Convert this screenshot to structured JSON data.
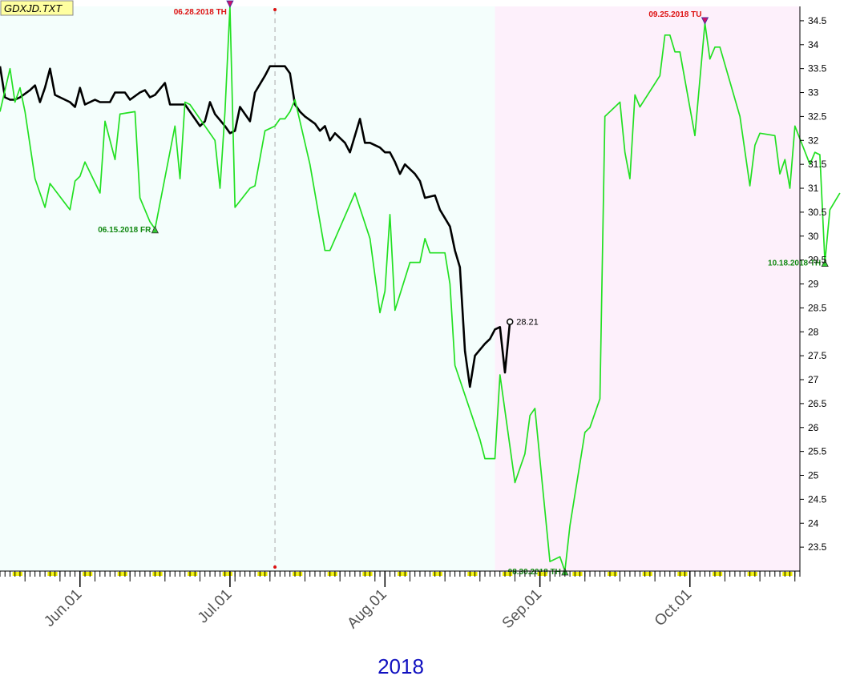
{
  "chart_data": {
    "type": "line",
    "title": "GDXJD.TXT",
    "year_label": "2018",
    "ylim": [
      23.0,
      34.8
    ],
    "y_ticks": [
      "23.5",
      "24",
      "24.5",
      "25",
      "25.5",
      "26",
      "26.5",
      "27",
      "27.5",
      "28",
      "28.5",
      "29",
      "29.5",
      "30",
      "30.5",
      "31",
      "31.5",
      "32",
      "32.5",
      "33",
      "33.5",
      "34",
      "34.5"
    ],
    "x_range": [
      "2018-05-16",
      "2018-10-23"
    ],
    "x_tick_labels": [
      {
        "date": "2018-06-01",
        "label": "Jun.01"
      },
      {
        "date": "2018-07-01",
        "label": "Jul.01"
      },
      {
        "date": "2018-08-01",
        "label": "Aug.01"
      },
      {
        "date": "2018-09-01",
        "label": "Sep.01"
      },
      {
        "date": "2018-10-01",
        "label": "Oct.01"
      }
    ],
    "regions": [
      {
        "from": "2018-05-16",
        "to": "2018-08-23",
        "color": "#f4fefc"
      },
      {
        "from": "2018-08-23",
        "to": "2018-10-23",
        "color": "#fdf0fb"
      }
    ],
    "vline": {
      "date": "2018-07-10",
      "color": "#aaaaaa"
    },
    "series": [
      {
        "color": "#000000",
        "points": [
          [
            "2018-05-16",
            33.55
          ],
          [
            "2018-05-17",
            32.9
          ],
          [
            "2018-05-18",
            32.85
          ],
          [
            "2018-05-19",
            32.85
          ],
          [
            "2018-05-20",
            32.9
          ],
          [
            "2018-05-22",
            33.05
          ],
          [
            "2018-05-23",
            33.15
          ],
          [
            "2018-05-24",
            32.8
          ],
          [
            "2018-05-25",
            33.1
          ],
          [
            "2018-05-26",
            33.5
          ],
          [
            "2018-05-27",
            32.95
          ],
          [
            "2018-05-30",
            32.8
          ],
          [
            "2018-05-31",
            32.7
          ],
          [
            "2018-06-01",
            33.1
          ],
          [
            "2018-06-02",
            32.75
          ],
          [
            "2018-06-04",
            32.85
          ],
          [
            "2018-06-05",
            32.8
          ],
          [
            "2018-06-06",
            32.8
          ],
          [
            "2018-06-07",
            32.8
          ],
          [
            "2018-06-08",
            33.0
          ],
          [
            "2018-06-10",
            33.0
          ],
          [
            "2018-06-11",
            32.85
          ],
          [
            "2018-06-13",
            33.0
          ],
          [
            "2018-06-14",
            33.05
          ],
          [
            "2018-06-15",
            32.9
          ],
          [
            "2018-06-16",
            32.95
          ],
          [
            "2018-06-18",
            33.2
          ],
          [
            "2018-06-19",
            32.75
          ],
          [
            "2018-06-21",
            32.75
          ],
          [
            "2018-06-22",
            32.75
          ],
          [
            "2018-06-25",
            32.3
          ],
          [
            "2018-06-26",
            32.4
          ],
          [
            "2018-06-27",
            32.8
          ],
          [
            "2018-06-28",
            32.55
          ],
          [
            "2018-06-30",
            32.3
          ],
          [
            "2018-07-01",
            32.15
          ],
          [
            "2018-07-02",
            32.2
          ],
          [
            "2018-07-03",
            32.7
          ],
          [
            "2018-07-05",
            32.4
          ],
          [
            "2018-07-06",
            33.0
          ],
          [
            "2018-07-08",
            33.35
          ],
          [
            "2018-07-09",
            33.55
          ],
          [
            "2018-07-11",
            33.55
          ],
          [
            "2018-07-12",
            33.55
          ],
          [
            "2018-07-13",
            33.4
          ],
          [
            "2018-07-14",
            32.75
          ],
          [
            "2018-07-15",
            32.6
          ],
          [
            "2018-07-16",
            32.5
          ],
          [
            "2018-07-18",
            32.35
          ],
          [
            "2018-07-19",
            32.2
          ],
          [
            "2018-07-20",
            32.3
          ],
          [
            "2018-07-21",
            32.0
          ],
          [
            "2018-07-22",
            32.15
          ],
          [
            "2018-07-24",
            31.95
          ],
          [
            "2018-07-25",
            31.75
          ],
          [
            "2018-07-27",
            32.45
          ],
          [
            "2018-07-28",
            31.95
          ],
          [
            "2018-07-29",
            31.95
          ],
          [
            "2018-07-31",
            31.85
          ],
          [
            "2018-08-01",
            31.75
          ],
          [
            "2018-08-02",
            31.75
          ],
          [
            "2018-08-03",
            31.55
          ],
          [
            "2018-08-04",
            31.3
          ],
          [
            "2018-08-05",
            31.5
          ],
          [
            "2018-08-07",
            31.3
          ],
          [
            "2018-08-08",
            31.15
          ],
          [
            "2018-08-09",
            30.8
          ],
          [
            "2018-08-11",
            30.85
          ],
          [
            "2018-08-12",
            30.55
          ],
          [
            "2018-08-14",
            30.2
          ],
          [
            "2018-08-15",
            29.7
          ],
          [
            "2018-08-16",
            29.35
          ],
          [
            "2018-08-17",
            27.6
          ],
          [
            "2018-08-18",
            26.85
          ],
          [
            "2018-08-19",
            27.5
          ],
          [
            "2018-08-21",
            27.75
          ],
          [
            "2018-08-22",
            27.85
          ],
          [
            "2018-08-23",
            28.05
          ],
          [
            "2018-08-24",
            28.1
          ],
          [
            "2018-08-25",
            27.15
          ],
          [
            "2018-08-26",
            28.21
          ]
        ]
      },
      {
        "color": "#22e022",
        "points": [
          [
            "2018-05-16",
            32.6
          ],
          [
            "2018-05-18",
            33.5
          ],
          [
            "2018-05-19",
            32.8
          ],
          [
            "2018-05-20",
            33.1
          ],
          [
            "2018-05-21",
            32.6
          ],
          [
            "2018-05-23",
            31.2
          ],
          [
            "2018-05-25",
            30.6
          ],
          [
            "2018-05-26",
            31.1
          ],
          [
            "2018-05-30",
            30.55
          ],
          [
            "2018-05-31",
            31.15
          ],
          [
            "2018-06-01",
            31.25
          ],
          [
            "2018-06-02",
            31.55
          ],
          [
            "2018-06-05",
            30.9
          ],
          [
            "2018-06-06",
            32.4
          ],
          [
            "2018-06-08",
            31.6
          ],
          [
            "2018-06-09",
            32.55
          ],
          [
            "2018-06-12",
            32.6
          ],
          [
            "2018-06-13",
            30.8
          ],
          [
            "2018-06-15",
            30.3
          ],
          [
            "2018-06-16",
            30.15
          ],
          [
            "2018-06-20",
            32.3
          ],
          [
            "2018-06-21",
            31.2
          ],
          [
            "2018-06-22",
            32.8
          ],
          [
            "2018-06-23",
            32.75
          ],
          [
            "2018-06-26",
            32.3
          ],
          [
            "2018-06-28",
            32.0
          ],
          [
            "2018-06-29",
            31.0
          ],
          [
            "2018-06-30",
            32.6
          ],
          [
            "2018-07-01",
            34.8
          ],
          [
            "2018-07-02",
            30.6
          ],
          [
            "2018-07-05",
            31.0
          ],
          [
            "2018-07-06",
            31.05
          ],
          [
            "2018-07-08",
            32.2
          ],
          [
            "2018-07-10",
            32.3
          ],
          [
            "2018-07-11",
            32.45
          ],
          [
            "2018-07-12",
            32.45
          ],
          [
            "2018-07-13",
            32.6
          ],
          [
            "2018-07-14",
            32.85
          ],
          [
            "2018-07-17",
            31.5
          ],
          [
            "2018-07-20",
            29.7
          ],
          [
            "2018-07-21",
            29.7
          ],
          [
            "2018-07-26",
            30.9
          ],
          [
            "2018-07-29",
            29.95
          ],
          [
            "2018-07-31",
            28.4
          ],
          [
            "2018-08-01",
            28.85
          ],
          [
            "2018-08-02",
            30.45
          ],
          [
            "2018-08-03",
            28.45
          ],
          [
            "2018-08-06",
            29.45
          ],
          [
            "2018-08-08",
            29.45
          ],
          [
            "2018-08-09",
            29.95
          ],
          [
            "2018-08-10",
            29.65
          ],
          [
            "2018-08-13",
            29.65
          ],
          [
            "2018-08-14",
            29.0
          ],
          [
            "2018-08-15",
            27.3
          ],
          [
            "2018-08-20",
            25.75
          ],
          [
            "2018-08-21",
            25.35
          ],
          [
            "2018-08-23",
            25.35
          ],
          [
            "2018-08-24",
            27.1
          ],
          [
            "2018-08-27",
            24.85
          ],
          [
            "2018-08-29",
            25.45
          ],
          [
            "2018-08-30",
            26.25
          ],
          [
            "2018-08-31",
            26.4
          ],
          [
            "2018-09-03",
            23.2
          ],
          [
            "2018-09-04",
            23.25
          ],
          [
            "2018-09-05",
            23.3
          ],
          [
            "2018-09-06",
            23.0
          ],
          [
            "2018-09-07",
            23.95
          ],
          [
            "2018-09-10",
            25.9
          ],
          [
            "2018-09-11",
            26.0
          ],
          [
            "2018-09-13",
            26.6
          ],
          [
            "2018-09-14",
            32.5
          ],
          [
            "2018-09-17",
            32.8
          ],
          [
            "2018-09-18",
            31.75
          ],
          [
            "2018-09-19",
            31.2
          ],
          [
            "2018-09-20",
            32.95
          ],
          [
            "2018-09-21",
            32.7
          ],
          [
            "2018-09-25",
            33.35
          ],
          [
            "2018-09-26",
            34.2
          ],
          [
            "2018-09-27",
            34.2
          ],
          [
            "2018-09-28",
            33.85
          ],
          [
            "2018-09-29",
            33.85
          ],
          [
            "2018-10-02",
            32.1
          ],
          [
            "2018-10-04",
            34.45
          ],
          [
            "2018-10-05",
            33.7
          ],
          [
            "2018-10-06",
            33.95
          ],
          [
            "2018-10-07",
            33.95
          ],
          [
            "2018-10-11",
            32.5
          ],
          [
            "2018-10-13",
            31.05
          ],
          [
            "2018-10-14",
            31.9
          ],
          [
            "2018-10-15",
            32.15
          ],
          [
            "2018-10-18",
            32.1
          ],
          [
            "2018-10-19",
            31.3
          ],
          [
            "2018-10-20",
            31.6
          ],
          [
            "2018-10-21",
            31.0
          ],
          [
            "2018-10-22",
            32.3
          ],
          [
            "2018-10-25",
            31.5
          ],
          [
            "2018-10-26",
            31.75
          ],
          [
            "2018-10-27",
            31.7
          ],
          [
            "2018-10-28",
            29.45
          ],
          [
            "2018-10-29",
            30.55
          ],
          [
            "2018-10-31",
            30.9
          ]
        ]
      }
    ],
    "annotations": [
      {
        "label": "06.28.2018 TH",
        "date": "2018-07-01",
        "value": 34.8,
        "kind": "high",
        "color": "#dd1111"
      },
      {
        "label": "06.15.2018 FR",
        "date": "2018-06-16",
        "value": 30.15,
        "kind": "low",
        "color": "#118811"
      },
      {
        "label": "09.25.2018 TU",
        "date": "2018-10-04",
        "value": 34.45,
        "kind": "high",
        "color": "#dd1111"
      },
      {
        "label": "08.30.2018 TH",
        "date": "2018-09-06",
        "value": 23.0,
        "kind": "low",
        "color": "#118811"
      },
      {
        "label": "10.18.2018 TH",
        "date": "2018-10-28",
        "value": 29.45,
        "kind": "low",
        "color": "#118811"
      }
    ],
    "last_value": {
      "label": "28.21",
      "date": "2018-08-26",
      "value": 28.21
    }
  }
}
